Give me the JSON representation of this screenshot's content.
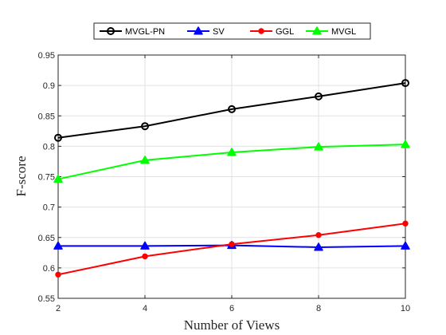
{
  "chart_data": {
    "type": "line",
    "title": "",
    "xlabel": "Number of Views",
    "ylabel": "F-score",
    "x": [
      2,
      4,
      6,
      8,
      10
    ],
    "xlim": [
      2,
      10
    ],
    "ylim": [
      0.55,
      0.95
    ],
    "xticks": [
      "2",
      "4",
      "6",
      "8",
      "10"
    ],
    "yticks": [
      "0.55",
      "0.6",
      "0.65",
      "0.7",
      "0.75",
      "0.8",
      "0.85",
      "0.9",
      "0.95"
    ],
    "grid": true,
    "legend_position": "top-center",
    "series": [
      {
        "name": "MVGL-PN",
        "color": "#000000",
        "marker": "circle",
        "values": [
          0.814,
          0.833,
          0.861,
          0.882,
          0.904
        ]
      },
      {
        "name": "SV",
        "color": "#0000ff",
        "marker": "triangle",
        "values": [
          0.636,
          0.636,
          0.637,
          0.634,
          0.636
        ]
      },
      {
        "name": "GGL",
        "color": "#ff0000",
        "marker": "dot",
        "values": [
          0.589,
          0.619,
          0.639,
          0.654,
          0.673
        ]
      },
      {
        "name": "MVGL",
        "color": "#00ff00",
        "marker": "triangle",
        "values": [
          0.746,
          0.777,
          0.79,
          0.799,
          0.803
        ]
      }
    ]
  }
}
